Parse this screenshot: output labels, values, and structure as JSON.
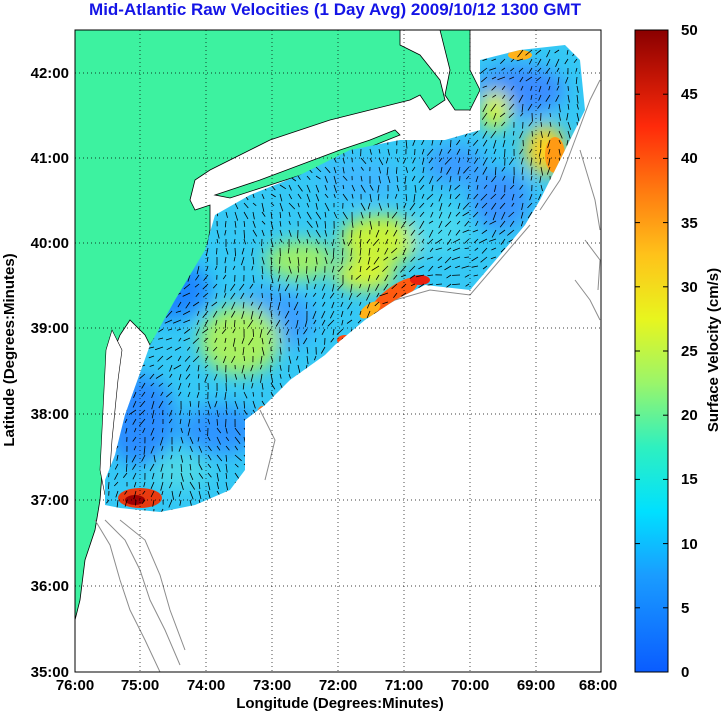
{
  "title": "Mid-Atlantic Raw Velocities (1 Day Avg) 2009/10/12 1300 GMT",
  "xlabel": "Longitude (Degrees:Minutes)",
  "ylabel": "Latitude (Degrees:Minutes)",
  "colorbar": {
    "label": "Surface Velocity (cm/s)",
    "min": 0,
    "max": 50,
    "ticks": [
      "0",
      "5",
      "10",
      "15",
      "20",
      "25",
      "30",
      "35",
      "40",
      "45",
      "50"
    ]
  },
  "x_ticks": [
    "76:00",
    "75:00",
    "74:00",
    "73:00",
    "72:00",
    "71:00",
    "70:00",
    "69:00",
    "68:00"
  ],
  "y_ticks": [
    "42:00",
    "41:00",
    "40:00",
    "39:00",
    "38:00",
    "37:00",
    "36:00",
    "35:00"
  ],
  "colors": {
    "land": "#3df2a0",
    "title": "#1414e6",
    "field_low": "#2f86ff",
    "field_mid": "#35d8f0",
    "field_high": "#ffe01a",
    "field_max": "#b00000"
  }
}
